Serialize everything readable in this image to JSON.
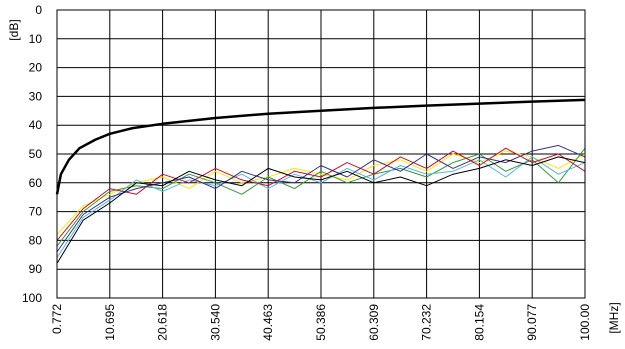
{
  "chart_data": {
    "type": "line",
    "title_fragment": "",
    "ylabel": "[dB]",
    "xlabel": "[MHz]",
    "ylim": [
      0,
      100
    ],
    "y_inverted": true,
    "y_ticks": [
      0,
      10,
      20,
      30,
      40,
      50,
      60,
      70,
      80,
      90,
      100
    ],
    "x_ticks": [
      "0.772",
      "10.695",
      "20.618",
      "30.540",
      "40.463",
      "50.386",
      "60.309",
      "70.232",
      "80.154",
      "90.077",
      "100.00"
    ],
    "x_range_mhz": [
      0.772,
      100.0
    ],
    "grid": true,
    "colors": {
      "limit": "#000000",
      "series": [
        "#ffe600",
        "#2e9e3a",
        "#56b4e9",
        "#c8102e",
        "#3b2f8f",
        "#000000"
      ]
    },
    "series": [
      {
        "role": "limit",
        "x": [
          0.772,
          1.5,
          3,
          5,
          8,
          10.695,
          15,
          20.618,
          30.54,
          40.463,
          50.386,
          60.309,
          70.232,
          80.154,
          90.077,
          100.0
        ],
        "values": [
          64,
          57,
          52,
          48,
          45,
          43,
          41,
          39.5,
          37.5,
          36,
          35,
          34,
          33.2,
          32.5,
          31.8,
          31.2
        ]
      },
      {
        "role": "measurement",
        "x": [
          0.772,
          5.7,
          10.695,
          15.7,
          20.618,
          25.6,
          30.54,
          35.5,
          40.463,
          45.4,
          50.386,
          55.3,
          60.309,
          65.3,
          70.232,
          75.2,
          80.154,
          85.1,
          90.077,
          95.0,
          100.0
        ],
        "values": [
          78,
          68,
          64,
          60,
          58,
          62,
          56,
          60,
          58,
          55,
          57,
          59,
          54,
          52,
          56,
          50,
          53,
          49,
          51,
          55,
          50
        ]
      },
      {
        "role": "measurement",
        "x": [
          0.772,
          5.7,
          10.695,
          15.7,
          20.618,
          25.6,
          30.54,
          35.5,
          40.463,
          45.4,
          50.386,
          55.3,
          60.309,
          65.3,
          70.232,
          75.2,
          80.154,
          85.1,
          90.077,
          95.0,
          100.0
        ],
        "values": [
          82,
          70,
          63,
          61,
          62,
          57,
          60,
          64,
          58,
          62,
          56,
          60,
          57,
          55,
          58,
          53,
          50,
          56,
          52,
          60,
          48
        ]
      },
      {
        "role": "measurement",
        "x": [
          0.772,
          5.7,
          10.695,
          15.7,
          20.618,
          25.6,
          30.54,
          35.5,
          40.463,
          45.4,
          50.386,
          55.3,
          60.309,
          65.3,
          70.232,
          75.2,
          80.154,
          85.1,
          90.077,
          95.0,
          100.0
        ],
        "values": [
          86,
          72,
          66,
          59,
          63,
          59,
          61,
          57,
          62,
          57,
          60,
          55,
          59,
          54,
          57,
          56,
          52,
          58,
          51,
          57,
          53
        ]
      },
      {
        "role": "measurement",
        "x": [
          0.772,
          5.7,
          10.695,
          15.7,
          20.618,
          25.6,
          30.54,
          35.5,
          40.463,
          45.4,
          50.386,
          55.3,
          60.309,
          65.3,
          70.232,
          75.2,
          80.154,
          85.1,
          90.077,
          95.0,
          100.0
        ],
        "values": [
          80,
          69,
          62,
          64,
          57,
          60,
          55,
          59,
          61,
          56,
          58,
          53,
          57,
          51,
          55,
          49,
          54,
          48,
          53,
          50,
          56
        ]
      },
      {
        "role": "measurement",
        "x": [
          0.772,
          5.7,
          10.695,
          15.7,
          20.618,
          25.6,
          30.54,
          35.5,
          40.463,
          45.4,
          50.386,
          55.3,
          60.309,
          65.3,
          70.232,
          75.2,
          80.154,
          85.1,
          90.077,
          95.0,
          100.0
        ],
        "values": [
          84,
          71,
          65,
          62,
          60,
          58,
          62,
          56,
          59,
          60,
          54,
          58,
          52,
          56,
          50,
          55,
          51,
          53,
          49,
          47,
          51
        ]
      },
      {
        "role": "measurement",
        "x": [
          0.772,
          5.7,
          10.695,
          15.7,
          20.618,
          25.6,
          30.54,
          35.5,
          40.463,
          45.4,
          50.386,
          55.3,
          60.309,
          65.3,
          70.232,
          75.2,
          80.154,
          85.1,
          90.077,
          95.0,
          100.0
        ],
        "values": [
          88,
          73,
          67,
          60,
          61,
          56,
          59,
          61,
          55,
          58,
          59,
          56,
          60,
          58,
          61,
          57,
          55,
          52,
          54,
          51,
          53
        ]
      }
    ]
  }
}
